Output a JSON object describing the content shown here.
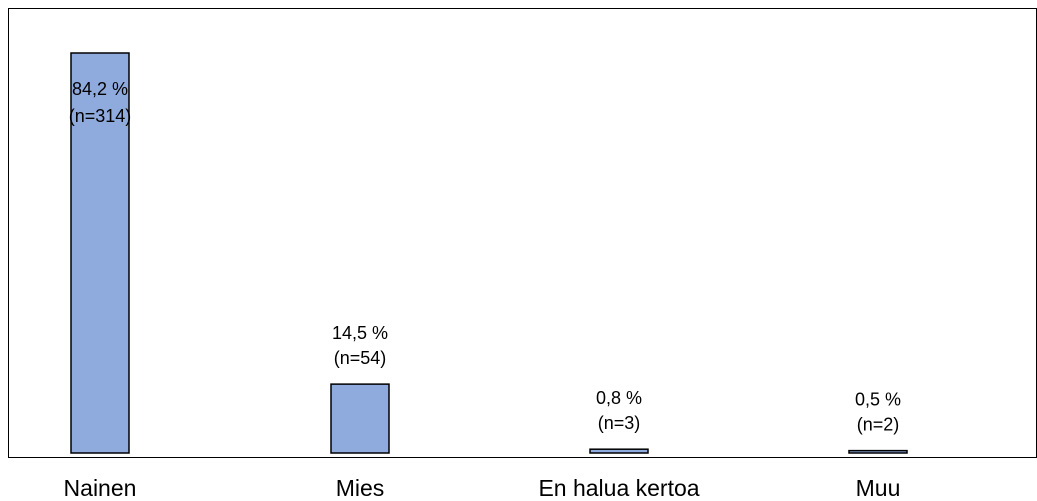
{
  "chart_data": {
    "type": "bar",
    "title": "",
    "xlabel": "",
    "ylabel": "",
    "categories": [
      "Nainen",
      "Mies",
      "En halua kertoa",
      "Muu"
    ],
    "values": [
      84.2,
      14.5,
      0.8,
      0.5
    ],
    "data_labels": [
      {
        "percent": "84,2 %",
        "count": "(n=314)"
      },
      {
        "percent": "14,5 %",
        "count": "(n=54)"
      },
      {
        "percent": "0,8 %",
        "count": "(n=3)"
      },
      {
        "percent": "0,5 %",
        "count": "(n=2)"
      }
    ],
    "ylim": [
      0,
      100
    ],
    "grid": false,
    "legend": "none",
    "bar_color": "#8faadc",
    "bar_edge_color": "#000000"
  }
}
